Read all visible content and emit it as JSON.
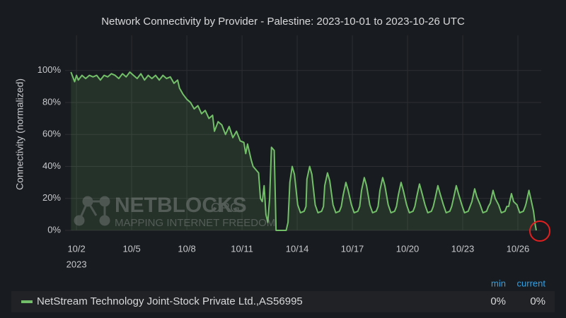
{
  "chart_data": {
    "type": "area",
    "title": "Network Connectivity by Provider - Palestine: 2023-10-01 to 2023-10-26 UTC",
    "y_label": "Connectivity (normalized)",
    "x_year_label": "2023",
    "xlim": [
      1.38,
      27.27
    ],
    "xticks": [
      {
        "value": 2,
        "label": "10/2"
      },
      {
        "value": 5,
        "label": "10/5"
      },
      {
        "value": 8,
        "label": "10/8"
      },
      {
        "value": 11,
        "label": "10/11"
      },
      {
        "value": 14,
        "label": "10/14"
      },
      {
        "value": 17,
        "label": "10/17"
      },
      {
        "value": 20,
        "label": "10/20"
      },
      {
        "value": 23,
        "label": "10/23"
      },
      {
        "value": 26,
        "label": "10/26"
      }
    ],
    "ylim": [
      0,
      122
    ],
    "yticks": [
      {
        "value": 0,
        "label": "0%"
      },
      {
        "value": 20,
        "label": "20%"
      },
      {
        "value": 40,
        "label": "40%"
      },
      {
        "value": 60,
        "label": "60%"
      },
      {
        "value": 80,
        "label": "80%"
      },
      {
        "value": 100,
        "label": "100%"
      }
    ],
    "grid": true,
    "x": [
      1.7,
      1.8,
      1.9,
      2.0,
      2.1,
      2.3,
      2.5,
      2.7,
      2.9,
      3.1,
      3.3,
      3.5,
      3.7,
      3.9,
      4.1,
      4.3,
      4.5,
      4.7,
      4.9,
      5.1,
      5.3,
      5.5,
      5.7,
      5.9,
      6.1,
      6.3,
      6.5,
      6.7,
      6.9,
      7.1,
      7.3,
      7.5,
      7.6,
      7.8,
      8.0,
      8.2,
      8.4,
      8.6,
      8.8,
      9.0,
      9.2,
      9.4,
      9.5,
      9.7,
      9.9,
      10.1,
      10.3,
      10.5,
      10.7,
      10.9,
      11.1,
      11.2,
      11.3,
      11.5,
      11.6,
      11.9,
      12.0,
      12.1,
      12.2,
      12.3,
      12.4,
      12.5,
      12.6,
      12.75,
      12.85,
      13.0,
      13.4,
      13.5,
      13.6,
      13.73,
      13.85,
      14.03,
      14.18,
      14.38,
      14.48,
      14.53,
      14.68,
      14.8,
      14.98,
      15.13,
      15.33,
      15.43,
      15.5,
      15.65,
      15.77,
      15.95,
      16.1,
      16.3,
      16.4,
      16.5,
      16.65,
      16.77,
      16.95,
      17.1,
      17.3,
      17.4,
      17.5,
      17.65,
      17.77,
      17.95,
      18.1,
      18.3,
      18.4,
      18.5,
      18.65,
      18.77,
      18.95,
      19.1,
      19.3,
      19.4,
      19.5,
      19.65,
      19.77,
      19.95,
      20.1,
      20.3,
      20.4,
      20.5,
      20.65,
      20.77,
      20.95,
      21.1,
      21.3,
      21.4,
      21.5,
      21.65,
      21.77,
      21.95,
      22.1,
      22.3,
      22.4,
      22.5,
      22.65,
      22.77,
      22.95,
      23.1,
      23.3,
      23.4,
      23.5,
      23.65,
      23.77,
      23.95,
      24.1,
      24.3,
      24.4,
      24.5,
      24.65,
      24.77,
      24.95,
      25.1,
      25.3,
      25.4,
      25.5,
      25.65,
      25.77,
      25.95,
      26.1,
      26.3,
      26.4,
      26.45,
      26.6,
      26.7,
      26.85,
      26.95,
      27.0
    ],
    "series": [
      {
        "name": "NetStream Technology Joint-Stock Private Ltd.,AS56995",
        "color": "#73bf69",
        "values": [
          99,
          96,
          93,
          97,
          94,
          97,
          95,
          97,
          96,
          97,
          94,
          97,
          96,
          98,
          97,
          95,
          98,
          96,
          99,
          97,
          95,
          98,
          94,
          97,
          95,
          97,
          94,
          97,
          95,
          96,
          92,
          94,
          89,
          85,
          82,
          80,
          76,
          78,
          73,
          75,
          70,
          72,
          62,
          68,
          66,
          60,
          65,
          58,
          62,
          56,
          55,
          48,
          54,
          44,
          40,
          36,
          20,
          18,
          28,
          10,
          5,
          20,
          52,
          50,
          0,
          0,
          0,
          5,
          30,
          40,
          35,
          16,
          11,
          12,
          15,
          32,
          40,
          35,
          16,
          11,
          12,
          15,
          28,
          36,
          31,
          16,
          11,
          12,
          15,
          22,
          30,
          25,
          16,
          11,
          12,
          15,
          25,
          33,
          28,
          16,
          11,
          12,
          15,
          25,
          33,
          28,
          16,
          11,
          12,
          15,
          22,
          30,
          25,
          16,
          11,
          12,
          15,
          21,
          29,
          24,
          16,
          11,
          12,
          15,
          20,
          28,
          23,
          16,
          11,
          12,
          15,
          20,
          28,
          23,
          16,
          11,
          12,
          15,
          18,
          26,
          21,
          16,
          11,
          12,
          15,
          17,
          25,
          20,
          16,
          11,
          12,
          15,
          15,
          23,
          18,
          16,
          11,
          12,
          15,
          17,
          25,
          20,
          12,
          3,
          0
        ]
      }
    ],
    "legend": {
      "min_header": "min",
      "current_header": "current",
      "min": {
        "value": 0,
        "label": "0%"
      },
      "current": {
        "value": 0,
        "label": "0%"
      }
    },
    "watermark": {
      "brand": "NETBLOCKS",
      "tld": ".ORG",
      "tagline": "MAPPING INTERNET FREEDOM"
    }
  }
}
